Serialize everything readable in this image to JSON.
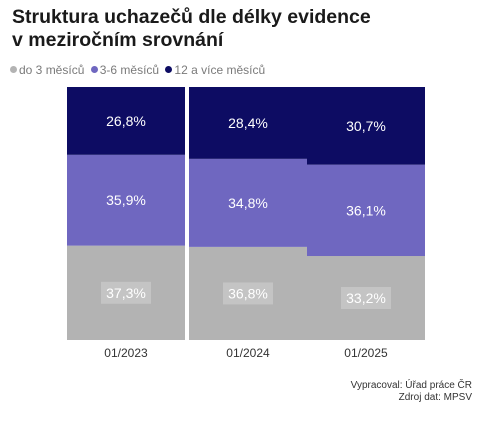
{
  "title_line1": "Struktura uchazečů dle délky evidence",
  "title_line2": "v meziročním srovnání",
  "credit_author": "Vypracoval: Úřad práce ČR",
  "credit_source": "Zdroj dat: MPSV",
  "chart_data": {
    "type": "bar",
    "stacked": true,
    "percent_stacked": true,
    "categories": [
      "01/2023",
      "01/2024",
      "01/2025"
    ],
    "series": [
      {
        "name": "do 3 měsíců",
        "color": "#b3b3b3",
        "values": [
          37.3,
          36.8,
          33.2
        ],
        "labels": [
          "37,3%",
          "36,8%",
          "33,2%"
        ]
      },
      {
        "name": "3-6 měsíců",
        "color": "#6f67c0",
        "values": [
          35.9,
          34.8,
          36.1
        ],
        "labels": [
          "35,9%",
          "34,8%",
          "36,1%"
        ]
      },
      {
        "name": "12 a více měsíců",
        "color": "#0d0c63",
        "values": [
          26.8,
          28.4,
          30.7
        ],
        "labels": [
          "26,8%",
          "28,4%",
          "30,7%"
        ]
      }
    ],
    "ylim": [
      0,
      100
    ],
    "grid": false,
    "legend_position": "top-left"
  }
}
